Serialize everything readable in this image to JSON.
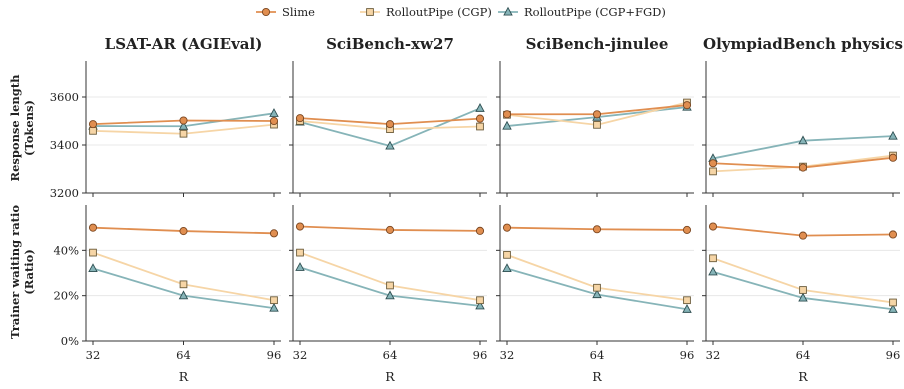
{
  "legend": [
    {
      "name": "Slime",
      "color": "#e08e50",
      "marker": "circle"
    },
    {
      "name": "RolloutPipe (CGP)",
      "color": "#f6d5a6",
      "marker": "square"
    },
    {
      "name": "RolloutPipe (CGP+FGD)",
      "color": "#86b4b8",
      "marker": "triangle"
    }
  ],
  "row_labels": [
    [
      "Response length",
      "(Tokens)"
    ],
    [
      "Trainer waiting ratio",
      "(Ratio)"
    ]
  ],
  "chart_data": [
    {
      "type": "line",
      "title": "LSAT-AR (AGIEval)",
      "xlabel": "R",
      "ylabel": "Response length (Tokens)",
      "x": [
        32,
        64,
        96
      ],
      "ylim": [
        3200,
        3750
      ],
      "yticks": [
        3200,
        3400,
        3600
      ],
      "grid": true,
      "series": [
        {
          "name": "Slime",
          "values": [
            3487,
            3502,
            3500
          ]
        },
        {
          "name": "RolloutPipe (CGP)",
          "values": [
            3459,
            3447,
            3485
          ]
        },
        {
          "name": "RolloutPipe (CGP+FGD)",
          "values": [
            3479,
            3478,
            3532
          ]
        }
      ]
    },
    {
      "type": "line",
      "title": "SciBench-xw27",
      "xlabel": "R",
      "ylabel": "Response length (Tokens)",
      "x": [
        32,
        64,
        96
      ],
      "ylim": [
        3200,
        3750
      ],
      "yticks": [
        3200,
        3400,
        3600
      ],
      "grid": true,
      "series": [
        {
          "name": "Slime",
          "values": [
            3512,
            3487,
            3510
          ]
        },
        {
          "name": "RolloutPipe (CGP)",
          "values": [
            3500,
            3466,
            3477
          ]
        },
        {
          "name": "RolloutPipe (CGP+FGD)",
          "values": [
            3496,
            3396,
            3553
          ]
        }
      ]
    },
    {
      "type": "line",
      "title": "SciBench-jinulee",
      "xlabel": "R",
      "ylabel": "Response length (Tokens)",
      "x": [
        32,
        64,
        96
      ],
      "ylim": [
        3200,
        3750
      ],
      "yticks": [
        3200,
        3400,
        3600
      ],
      "grid": true,
      "series": [
        {
          "name": "Slime",
          "values": [
            3528,
            3528,
            3566
          ]
        },
        {
          "name": "RolloutPipe (CGP)",
          "values": [
            3526,
            3484,
            3577
          ]
        },
        {
          "name": "RolloutPipe (CGP+FGD)",
          "values": [
            3479,
            3516,
            3558
          ]
        }
      ]
    },
    {
      "type": "line",
      "title": "OlympiadBench physics",
      "xlabel": "R",
      "ylabel": "Response length (Tokens)",
      "x": [
        32,
        64,
        96
      ],
      "ylim": [
        3200,
        3750
      ],
      "yticks": [
        3200,
        3400,
        3600
      ],
      "grid": true,
      "series": [
        {
          "name": "Slime",
          "values": [
            3324,
            3306,
            3347
          ]
        },
        {
          "name": "RolloutPipe (CGP)",
          "values": [
            3290,
            3310,
            3356
          ]
        },
        {
          "name": "RolloutPipe (CGP+FGD)",
          "values": [
            3344,
            3418,
            3437
          ]
        }
      ]
    },
    {
      "type": "line",
      "title": "",
      "xlabel": "R",
      "ylabel": "Trainer waiting ratio (Ratio)",
      "x": [
        32,
        64,
        96
      ],
      "ylim": [
        0,
        0.6
      ],
      "yticks": [
        0,
        0.2,
        0.4
      ],
      "ytick_labels": [
        "0%",
        "20%",
        "40%"
      ],
      "grid": true,
      "series": [
        {
          "name": "Slime",
          "values": [
            0.5,
            0.485,
            0.475
          ]
        },
        {
          "name": "RolloutPipe (CGP)",
          "values": [
            0.39,
            0.25,
            0.18
          ]
        },
        {
          "name": "RolloutPipe (CGP+FGD)",
          "values": [
            0.32,
            0.2,
            0.145
          ]
        }
      ]
    },
    {
      "type": "line",
      "title": "",
      "xlabel": "R",
      "ylabel": "Trainer waiting ratio (Ratio)",
      "x": [
        32,
        64,
        96
      ],
      "ylim": [
        0,
        0.6
      ],
      "yticks": [
        0,
        0.2,
        0.4
      ],
      "ytick_labels": [
        "0%",
        "20%",
        "40%"
      ],
      "grid": true,
      "series": [
        {
          "name": "Slime",
          "values": [
            0.505,
            0.49,
            0.486
          ]
        },
        {
          "name": "RolloutPipe (CGP)",
          "values": [
            0.39,
            0.245,
            0.18
          ]
        },
        {
          "name": "RolloutPipe (CGP+FGD)",
          "values": [
            0.325,
            0.2,
            0.155
          ]
        }
      ]
    },
    {
      "type": "line",
      "title": "",
      "xlabel": "R",
      "ylabel": "Trainer waiting ratio (Ratio)",
      "x": [
        32,
        64,
        96
      ],
      "ylim": [
        0,
        0.6
      ],
      "yticks": [
        0,
        0.2,
        0.4
      ],
      "ytick_labels": [
        "0%",
        "20%",
        "40%"
      ],
      "grid": true,
      "series": [
        {
          "name": "Slime",
          "values": [
            0.5,
            0.493,
            0.49
          ]
        },
        {
          "name": "RolloutPipe (CGP)",
          "values": [
            0.38,
            0.235,
            0.18
          ]
        },
        {
          "name": "RolloutPipe (CGP+FGD)",
          "values": [
            0.32,
            0.205,
            0.14
          ]
        }
      ]
    },
    {
      "type": "line",
      "title": "",
      "xlabel": "R",
      "ylabel": "Trainer waiting ratio (Ratio)",
      "x": [
        32,
        64,
        96
      ],
      "ylim": [
        0,
        0.6
      ],
      "yticks": [
        0,
        0.2,
        0.4
      ],
      "ytick_labels": [
        "0%",
        "20%",
        "40%"
      ],
      "grid": true,
      "series": [
        {
          "name": "Slime",
          "values": [
            0.505,
            0.465,
            0.47
          ]
        },
        {
          "name": "RolloutPipe (CGP)",
          "values": [
            0.365,
            0.225,
            0.17
          ]
        },
        {
          "name": "RolloutPipe (CGP+FGD)",
          "values": [
            0.305,
            0.19,
            0.14
          ]
        }
      ]
    }
  ]
}
